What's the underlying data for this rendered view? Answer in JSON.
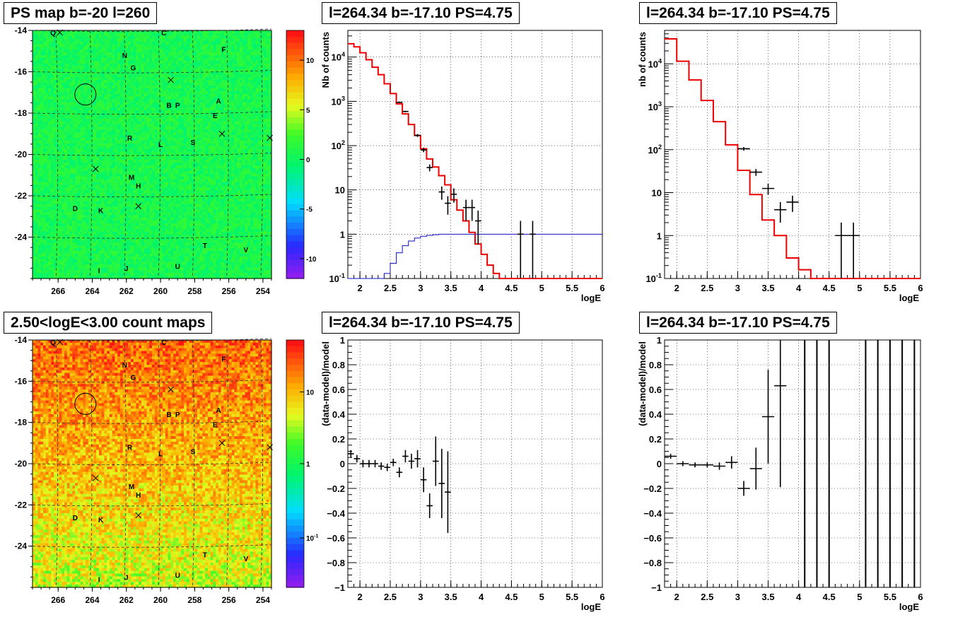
{
  "titles": {
    "ps_map": "PS map b=-20 l=260",
    "count_maps": "2.50<logE<3.00 count maps",
    "spectrum_left": "l=264.34 b=-17.10 PS=4.75",
    "spectrum_right": "l=264.34 b=-17.10 PS=4.75",
    "residual_left": "l=264.34 b=-17.10 PS=4.75",
    "residual_right": "l=264.34 b=-17.10 PS=4.75"
  },
  "chart_data": [
    {
      "id": "ps_map",
      "type": "heatmap",
      "title": "PS map b=-20 l=260",
      "x_ticks": [
        "266",
        "264",
        "262",
        "260",
        "258",
        "256",
        "254"
      ],
      "y_ticks": [
        "-14",
        "-16",
        "-18",
        "-20",
        "-22",
        "-24"
      ],
      "xlim": [
        267.5,
        253.5
      ],
      "ylim": [
        -26,
        -14
      ],
      "colorbar_ticks": [
        "10",
        "5",
        "0",
        "-5",
        "-10"
      ],
      "colorbar_range": [
        -12,
        13
      ],
      "grid": true,
      "sources": [
        {
          "label": "Q",
          "l": 266.3,
          "b": -14.1
        },
        {
          "label": "C",
          "l": 259.8,
          "b": -14.1
        },
        {
          "label": "F",
          "l": 256.3,
          "b": -14.9
        },
        {
          "label": "N",
          "l": 262.1,
          "b": -15.2
        },
        {
          "label": "G",
          "l": 261.6,
          "b": -15.8
        },
        {
          "label": "B",
          "l": 259.5,
          "b": -17.6
        },
        {
          "label": "P",
          "l": 259.0,
          "b": -17.6
        },
        {
          "label": "A",
          "l": 256.6,
          "b": -17.4
        },
        {
          "label": "E",
          "l": 256.8,
          "b": -18.1
        },
        {
          "label": "R",
          "l": 261.8,
          "b": -19.2
        },
        {
          "label": "L",
          "l": 260.0,
          "b": -19.5
        },
        {
          "label": "S",
          "l": 258.1,
          "b": -19.4
        },
        {
          "label": "M",
          "l": 261.7,
          "b": -21.1
        },
        {
          "label": "H",
          "l": 261.3,
          "b": -21.5
        },
        {
          "label": "D",
          "l": 265.0,
          "b": -22.6
        },
        {
          "label": "K",
          "l": 263.5,
          "b": -22.7
        },
        {
          "label": "T",
          "l": 257.4,
          "b": -24.4
        },
        {
          "label": "V",
          "l": 255.0,
          "b": -24.6
        },
        {
          "label": "I",
          "l": 263.6,
          "b": -25.6
        },
        {
          "label": "J",
          "l": 262.0,
          "b": -25.5
        },
        {
          "label": "U",
          "l": 259.0,
          "b": -25.4
        }
      ],
      "crosses": [
        [
          265.9,
          -14.1
        ],
        [
          259.4,
          -16.4
        ],
        [
          256.4,
          -19.0
        ],
        [
          263.8,
          -20.7
        ],
        [
          261.3,
          -22.5
        ],
        [
          253.6,
          -19.2
        ]
      ],
      "circle": {
        "l": 264.4,
        "b": -17.1
      }
    },
    {
      "id": "count_maps",
      "type": "heatmap",
      "title": "2.50<logE<3.00 count maps",
      "x_ticks": [
        "266",
        "264",
        "262",
        "260",
        "258",
        "256",
        "254"
      ],
      "y_ticks": [
        "-14",
        "-16",
        "-18",
        "-20",
        "-22",
        "-24"
      ],
      "xlim": [
        267.5,
        253.5
      ],
      "ylim": [
        -26,
        -14
      ],
      "colorbar_ticks": [
        "10",
        "1",
        "10-1"
      ],
      "colorbar_log": true,
      "grid": true
    },
    {
      "id": "spectrum_left",
      "type": "line",
      "title": "l=264.34 b=-17.10 PS=4.75",
      "xlabel": "logE",
      "ylabel": "Nb of counts",
      "xlim": [
        1.8,
        6
      ],
      "ylim": [
        0.1,
        40000
      ],
      "log_y": true,
      "x_ticks": [
        "2",
        "2.5",
        "3",
        "3.5",
        "4",
        "4.5",
        "5",
        "5.5",
        "6"
      ],
      "y_ticks": [
        "10-1",
        "1",
        "10",
        "102",
        "103",
        "104"
      ],
      "grid": true,
      "model_step": [
        [
          1.8,
          20000
        ],
        [
          1.9,
          17000
        ],
        [
          2.0,
          12500
        ],
        [
          2.1,
          8700
        ],
        [
          2.2,
          5900
        ],
        [
          2.3,
          4000
        ],
        [
          2.4,
          2500
        ],
        [
          2.5,
          1500
        ],
        [
          2.6,
          880
        ],
        [
          2.7,
          520
        ],
        [
          2.8,
          300
        ],
        [
          2.9,
          170
        ],
        [
          3.0,
          85
        ],
        [
          3.1,
          50
        ],
        [
          3.2,
          33
        ],
        [
          3.3,
          21
        ],
        [
          3.4,
          13
        ],
        [
          3.5,
          6
        ],
        [
          3.6,
          3.5
        ],
        [
          3.7,
          2
        ],
        [
          3.8,
          1.1
        ],
        [
          3.9,
          0.6
        ],
        [
          4.0,
          0.35
        ],
        [
          4.1,
          0.2
        ],
        [
          4.2,
          0.13
        ],
        [
          4.3,
          0.1
        ],
        [
          6.0,
          0.1
        ]
      ],
      "blue_step": [
        [
          1.8,
          0.1
        ],
        [
          2.3,
          0.1
        ],
        [
          2.4,
          0.13
        ],
        [
          2.5,
          0.22
        ],
        [
          2.6,
          0.38
        ],
        [
          2.7,
          0.55
        ],
        [
          2.8,
          0.7
        ],
        [
          2.9,
          0.82
        ],
        [
          3.0,
          0.9
        ],
        [
          3.1,
          0.94
        ],
        [
          3.2,
          0.97
        ],
        [
          3.3,
          1.0
        ],
        [
          6.0,
          1.0
        ]
      ],
      "points": [
        [
          2.65,
          950
        ],
        [
          2.75,
          590
        ],
        [
          2.95,
          170
        ],
        [
          3.05,
          80
        ],
        [
          3.15,
          32
        ],
        [
          3.35,
          9
        ],
        [
          3.45,
          5
        ],
        [
          3.55,
          8
        ],
        [
          3.75,
          4
        ],
        [
          3.85,
          4
        ],
        [
          3.95,
          2
        ],
        [
          4.65,
          1
        ],
        [
          4.85,
          1
        ]
      ]
    },
    {
      "id": "spectrum_right",
      "type": "line",
      "title": "l=264.34 b=-17.10 PS=4.75",
      "xlabel": "logE",
      "ylabel": "nb of counts",
      "xlim": [
        1.8,
        6
      ],
      "ylim": [
        0.1,
        60000
      ],
      "log_y": true,
      "x_ticks": [
        "2",
        "2.5",
        "3",
        "3.5",
        "4",
        "4.5",
        "5",
        "5.5",
        "6"
      ],
      "y_ticks": [
        "10-1",
        "1",
        "10",
        "102",
        "103",
        "104"
      ],
      "grid": true,
      "model_step": [
        [
          1.8,
          38000
        ],
        [
          2.0,
          11500
        ],
        [
          2.2,
          4200
        ],
        [
          2.4,
          1400
        ],
        [
          2.6,
          450
        ],
        [
          2.8,
          130
        ],
        [
          3.0,
          33
        ],
        [
          3.2,
          9
        ],
        [
          3.4,
          2.3
        ],
        [
          3.6,
          1
        ],
        [
          3.8,
          0.3
        ],
        [
          4.0,
          0.16
        ],
        [
          4.2,
          0.1
        ],
        [
          6.0,
          0.1
        ]
      ],
      "points": [
        [
          3.1,
          105
        ],
        [
          3.3,
          30
        ],
        [
          3.5,
          12.5
        ],
        [
          3.7,
          4
        ],
        [
          3.9,
          6
        ],
        [
          4.7,
          1
        ],
        [
          4.9,
          1
        ]
      ]
    },
    {
      "id": "residual_left",
      "type": "scatter",
      "title": "l=264.34 b=-17.10 PS=4.75",
      "xlabel": "logE",
      "ylabel": "(data-model)/model",
      "xlim": [
        1.8,
        6
      ],
      "ylim": [
        -1,
        1
      ],
      "x_ticks": [
        "2",
        "2.5",
        "3",
        "3.5",
        "4",
        "4.5",
        "5",
        "5.5",
        "6"
      ],
      "y_ticks": [
        "1",
        "0.8",
        "0.6",
        "0.4",
        "0.2",
        "0",
        "-0.2",
        "-0.4",
        "-0.6",
        "-0.8",
        "-1"
      ],
      "grid": true,
      "points": [
        [
          1.85,
          0.08,
          0.03
        ],
        [
          1.95,
          0.04,
          0.03
        ],
        [
          2.05,
          0.0,
          0.03
        ],
        [
          2.15,
          0.0,
          0.03
        ],
        [
          2.25,
          0.0,
          0.03
        ],
        [
          2.35,
          -0.02,
          0.03
        ],
        [
          2.45,
          -0.03,
          0.03
        ],
        [
          2.55,
          0.01,
          0.03
        ],
        [
          2.65,
          -0.07,
          0.04
        ],
        [
          2.75,
          0.06,
          0.05
        ],
        [
          2.85,
          0.02,
          0.06
        ],
        [
          2.95,
          0.04,
          0.07
        ],
        [
          3.05,
          -0.13,
          0.1
        ],
        [
          3.15,
          -0.34,
          0.1
        ],
        [
          3.25,
          0.02,
          0.2
        ],
        [
          3.35,
          -0.16,
          0.28
        ],
        [
          3.45,
          -0.23,
          0.33
        ]
      ]
    },
    {
      "id": "residual_right",
      "type": "scatter",
      "title": "l=264.34 b=-17.10 PS=4.75",
      "xlabel": "logE",
      "ylabel": "(data-model)/model",
      "xlim": [
        1.8,
        6
      ],
      "ylim": [
        -1,
        1
      ],
      "x_ticks": [
        "2",
        "2.5",
        "3",
        "3.5",
        "4",
        "4.5",
        "5",
        "5.5",
        "6"
      ],
      "y_ticks": [
        "1",
        "0.8",
        "0.6",
        "0.4",
        "0.2",
        "0",
        "-0.2",
        "-0.4",
        "-0.6",
        "-0.8",
        "-1"
      ],
      "grid": true,
      "points": [
        [
          1.9,
          0.06,
          0.02
        ],
        [
          2.1,
          0.0,
          0.02
        ],
        [
          2.3,
          -0.01,
          0.02
        ],
        [
          2.5,
          -0.01,
          0.02
        ],
        [
          2.7,
          -0.02,
          0.03
        ],
        [
          2.9,
          0.01,
          0.05
        ],
        [
          3.1,
          -0.2,
          0.06
        ],
        [
          3.3,
          -0.04,
          0.17
        ],
        [
          3.5,
          0.38,
          0.38
        ],
        [
          3.7,
          0.63,
          0.82
        ]
      ],
      "full_bars": [
        4.1,
        4.3,
        4.5,
        5.1,
        5.3,
        5.5,
        5.7,
        5.9
      ]
    }
  ]
}
